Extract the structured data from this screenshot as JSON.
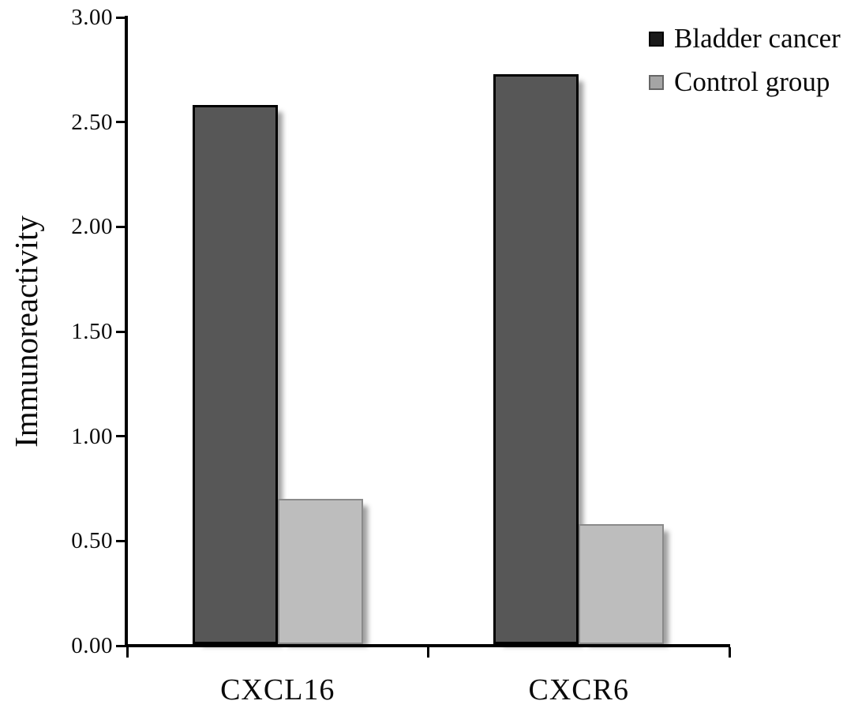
{
  "chart_data": {
    "type": "bar",
    "title": "",
    "ylabel": "Immunoreactivity",
    "xlabel": "",
    "ylim": [
      0,
      3
    ],
    "grid": false,
    "legend_position": "top-right",
    "axis_color": "#000000",
    "text_color": "#0a0a0a",
    "categories": [
      "CXCL16",
      "CXCR6"
    ],
    "series": [
      {
        "name": "Bladder cancer",
        "values": [
          2.58,
          2.73
        ],
        "fill": "#575757",
        "border": "#000000",
        "swatch_fill": "#1a1a1a",
        "swatch_border": "#000000"
      },
      {
        "name": "Control group",
        "values": [
          0.7,
          0.58
        ],
        "fill": "#bdbdbd",
        "border": "#8a8a8a",
        "swatch_fill": "#a5a5a5",
        "swatch_border": "#666666"
      }
    ],
    "yticks": [
      {
        "value": 0.0,
        "label": "0.00"
      },
      {
        "value": 0.5,
        "label": "0.50"
      },
      {
        "value": 1.0,
        "label": "1.00"
      },
      {
        "value": 1.5,
        "label": "1.50"
      },
      {
        "value": 2.0,
        "label": "2.00"
      },
      {
        "value": 2.5,
        "label": "2.50"
      },
      {
        "value": 3.0,
        "label": "3.00"
      }
    ]
  }
}
